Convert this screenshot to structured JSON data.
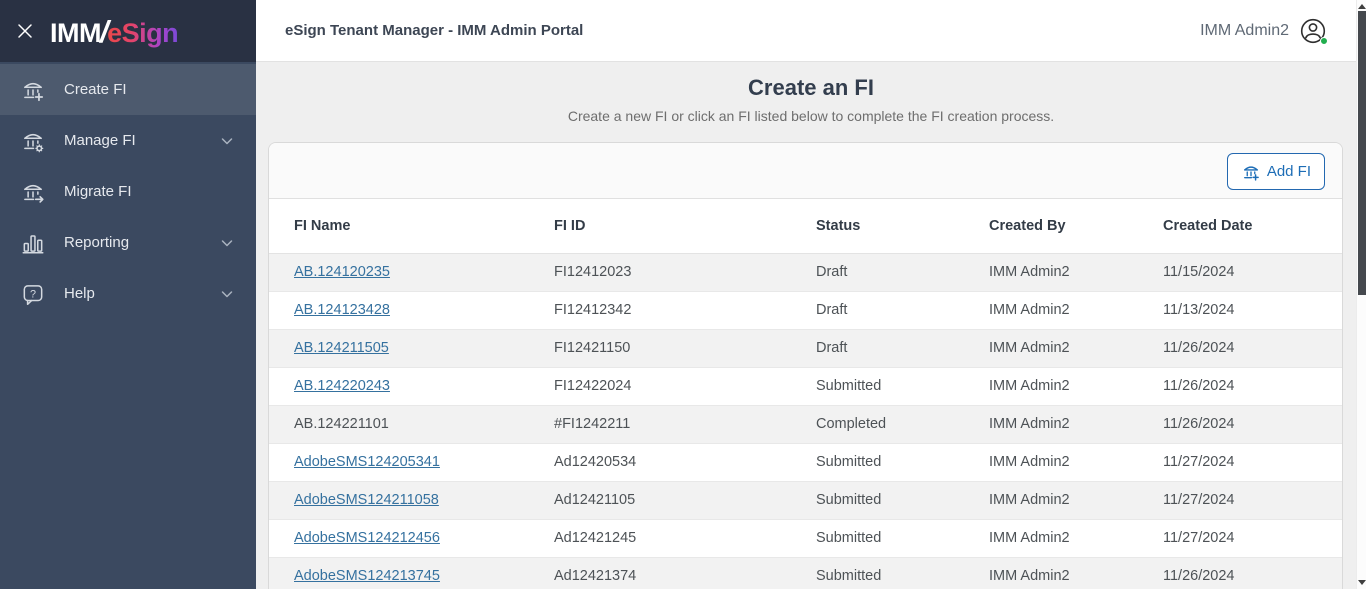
{
  "sidebar": {
    "logo": {
      "imm": "IMM",
      "slash": "/",
      "esign": "eSign"
    },
    "items": [
      {
        "label": "Create FI",
        "icon": "bank-plus-icon",
        "active": true,
        "has_submenu": false
      },
      {
        "label": "Manage FI",
        "icon": "bank-gear-icon",
        "active": false,
        "has_submenu": true
      },
      {
        "label": "Migrate FI",
        "icon": "bank-arrow-icon",
        "active": false,
        "has_submenu": false
      },
      {
        "label": "Reporting",
        "icon": "bar-chart-icon",
        "active": false,
        "has_submenu": true
      },
      {
        "label": "Help",
        "icon": "help-bubble-icon",
        "active": false,
        "has_submenu": true
      }
    ]
  },
  "header": {
    "title": "eSign Tenant Manager - IMM Admin Portal",
    "user": "IMM Admin2"
  },
  "page": {
    "title": "Create an FI",
    "subtitle": "Create a new FI or click an FI listed below to complete the FI creation process."
  },
  "toolbar": {
    "add_fi_label": "Add FI"
  },
  "table": {
    "columns": [
      "FI Name",
      "FI ID",
      "Status",
      "Created By",
      "Created Date"
    ],
    "rows": [
      {
        "fi_name": "AB.124120235",
        "is_link": true,
        "fi_id": "FI12412023",
        "status": "Draft",
        "created_by": "IMM Admin2",
        "created_date": "11/15/2024"
      },
      {
        "fi_name": "AB.124123428",
        "is_link": true,
        "fi_id": "FI12412342",
        "status": "Draft",
        "created_by": "IMM Admin2",
        "created_date": "11/13/2024"
      },
      {
        "fi_name": "AB.124211505",
        "is_link": true,
        "fi_id": "FI12421150",
        "status": "Draft",
        "created_by": "IMM Admin2",
        "created_date": "11/26/2024"
      },
      {
        "fi_name": "AB.124220243",
        "is_link": true,
        "fi_id": "FI12422024",
        "status": "Submitted",
        "created_by": "IMM Admin2",
        "created_date": "11/26/2024"
      },
      {
        "fi_name": "AB.124221101",
        "is_link": false,
        "fi_id": "#FI1242211",
        "status": "Completed",
        "created_by": "IMM Admin2",
        "created_date": "11/26/2024"
      },
      {
        "fi_name": "AdobeSMS124205341",
        "is_link": true,
        "fi_id": "Ad12420534",
        "status": "Submitted",
        "created_by": "IMM Admin2",
        "created_date": "11/27/2024"
      },
      {
        "fi_name": "AdobeSMS124211058",
        "is_link": true,
        "fi_id": "Ad12421105",
        "status": "Submitted",
        "created_by": "IMM Admin2",
        "created_date": "11/27/2024"
      },
      {
        "fi_name": "AdobeSMS124212456",
        "is_link": true,
        "fi_id": "Ad12421245",
        "status": "Submitted",
        "created_by": "IMM Admin2",
        "created_date": "11/27/2024"
      },
      {
        "fi_name": "AdobeSMS124213745",
        "is_link": true,
        "fi_id": "Ad12421374",
        "status": "Submitted",
        "created_by": "IMM Admin2",
        "created_date": "11/26/2024"
      }
    ]
  },
  "colors": {
    "accent_blue": "#1d6db6",
    "link_blue": "#35719f",
    "sidebar_bg": "#3b4960",
    "sidebar_active_bg": "#4d5a6e",
    "logo_area_bg": "#293143",
    "brand_gradient_start": "#ea4848",
    "brand_gradient_end": "#7a4ad8",
    "online_dot_green": "#21ae4e",
    "row_stripe": "#f2f2f2"
  }
}
